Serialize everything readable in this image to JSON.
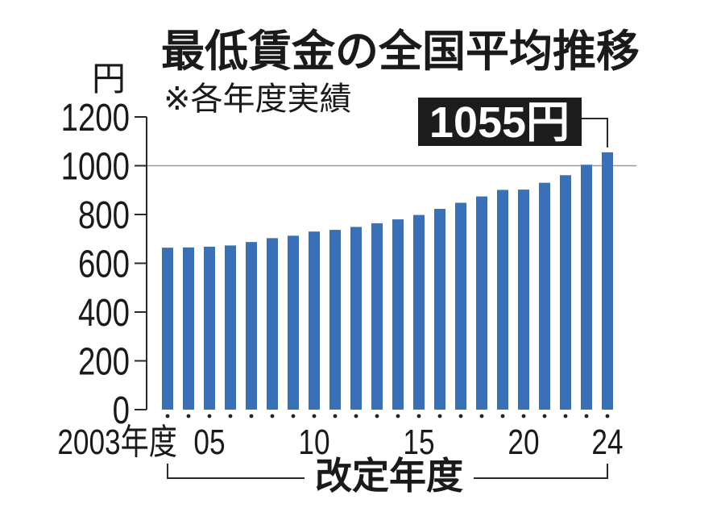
{
  "chart_data": {
    "type": "bar",
    "title": "最低賃金の全国平均推移",
    "subtitle": "※各年度実績",
    "ylabel": "円",
    "xlabel": "改定年度",
    "ylim": [
      0,
      1200
    ],
    "yticks": [
      0,
      200,
      400,
      600,
      800,
      1000,
      1200
    ],
    "categories": [
      2003,
      2004,
      2005,
      2006,
      2007,
      2008,
      2009,
      2010,
      2011,
      2012,
      2013,
      2014,
      2015,
      2016,
      2017,
      2018,
      2019,
      2020,
      2021,
      2022,
      2023,
      2024
    ],
    "values": [
      664,
      665,
      668,
      673,
      687,
      703,
      713,
      730,
      737,
      749,
      764,
      780,
      798,
      823,
      848,
      874,
      901,
      902,
      930,
      961,
      1004,
      1055
    ],
    "xtick_labels": [
      {
        "category": 2003,
        "label": "2003年度"
      },
      {
        "category": 2005,
        "label": "05"
      },
      {
        "category": 2010,
        "label": "10"
      },
      {
        "category": 2015,
        "label": "15"
      },
      {
        "category": 2020,
        "label": "20"
      },
      {
        "category": 2024,
        "label": "24"
      }
    ],
    "annotation": {
      "category": 2024,
      "label": "1055円"
    },
    "reference_line": 1000,
    "grid": false,
    "colors": {
      "bar": "#3a70b6",
      "callout_box": "#1c1c1c",
      "callout_text": "#ffffff",
      "reference_line": "#9a9a9a",
      "text": "#1a1a1a"
    }
  }
}
